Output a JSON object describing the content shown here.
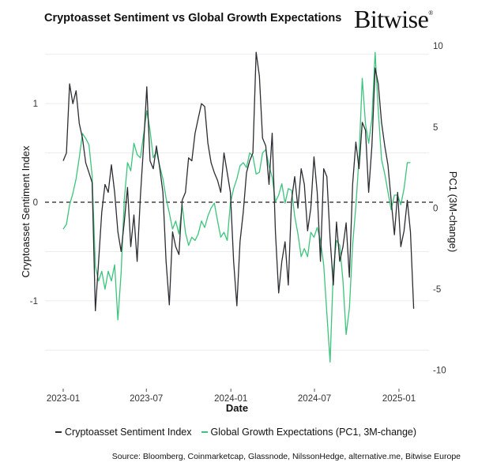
{
  "header": {
    "title": "Cryptoasset Sentiment vs Global Growth Expectations",
    "logo": "Bitwise",
    "logo_mark": "®"
  },
  "source": "Source: Bloomberg, Coinmarketcap, Glassnode, NilssonHedge, alternative.me, Bitwise Europe",
  "colors": {
    "sentiment": "#2b2d33",
    "growth": "#3cc47c",
    "grid": "#ececec"
  },
  "chart_data": {
    "type": "line",
    "title": "Cryptoasset Sentiment vs Global Growth Expectations",
    "xlabel": "Date",
    "ylabel": "Cryptoasset Sentiment Index",
    "ylabel_right": "PC1 (3M-change)",
    "x_ticks": [
      "2023-01",
      "2023-07",
      "2024-01",
      "2024-07",
      "2025-01"
    ],
    "y_ticks": [
      "1",
      "0",
      "-1"
    ],
    "y_ticks_right": [
      "10",
      "5",
      "0",
      "-5",
      "-10"
    ],
    "ylim": [
      -1.85,
      1.65
    ],
    "ylim_right": [
      -10.9,
      10.4
    ],
    "reference_line": {
      "axis": "left",
      "value": 0,
      "style": "dashed"
    },
    "grid": true,
    "legend": "bottom",
    "x": [
      "2023-01-01",
      "2023-01-08",
      "2023-01-15",
      "2023-01-22",
      "2023-01-29",
      "2023-02-05",
      "2023-02-12",
      "2023-02-19",
      "2023-02-26",
      "2023-03-05",
      "2023-03-12",
      "2023-03-19",
      "2023-03-26",
      "2023-04-02",
      "2023-04-09",
      "2023-04-16",
      "2023-04-23",
      "2023-04-30",
      "2023-05-07",
      "2023-05-14",
      "2023-05-21",
      "2023-05-28",
      "2023-06-04",
      "2023-06-11",
      "2023-06-18",
      "2023-06-25",
      "2023-07-02",
      "2023-07-09",
      "2023-07-16",
      "2023-07-23",
      "2023-07-30",
      "2023-08-06",
      "2023-08-13",
      "2023-08-20",
      "2023-08-27",
      "2023-09-03",
      "2023-09-10",
      "2023-09-17",
      "2023-09-24",
      "2023-10-01",
      "2023-10-08",
      "2023-10-15",
      "2023-10-22",
      "2023-10-29",
      "2023-11-05",
      "2023-11-12",
      "2023-11-19",
      "2023-11-26",
      "2023-12-03",
      "2023-12-10",
      "2023-12-17",
      "2023-12-24",
      "2023-12-31",
      "2024-01-07",
      "2024-01-14",
      "2024-01-21",
      "2024-01-28",
      "2024-02-04",
      "2024-02-11",
      "2024-02-18",
      "2024-02-25",
      "2024-03-03",
      "2024-03-10",
      "2024-03-17",
      "2024-03-24",
      "2024-03-31",
      "2024-04-07",
      "2024-04-14",
      "2024-04-21",
      "2024-04-28",
      "2024-05-05",
      "2024-05-12",
      "2024-05-19",
      "2024-05-26",
      "2024-06-02",
      "2024-06-09",
      "2024-06-16",
      "2024-06-23",
      "2024-06-30",
      "2024-07-07",
      "2024-07-14",
      "2024-07-21",
      "2024-07-28",
      "2024-08-04",
      "2024-08-11",
      "2024-08-18",
      "2024-08-25",
      "2024-09-01",
      "2024-09-08",
      "2024-09-15",
      "2024-09-22",
      "2024-09-29",
      "2024-10-06",
      "2024-10-13",
      "2024-10-20",
      "2024-10-27",
      "2024-11-03",
      "2024-11-10",
      "2024-11-17",
      "2024-11-24",
      "2024-12-01",
      "2024-12-08",
      "2024-12-15",
      "2024-12-22",
      "2024-12-29",
      "2025-01-05",
      "2025-01-12",
      "2025-01-19",
      "2025-01-26",
      "2025-02-02"
    ],
    "series": [
      {
        "name": "Cryptoasset Sentiment Index",
        "axis": "left",
        "values": [
          0.42,
          0.5,
          1.2,
          1.0,
          1.13,
          0.8,
          0.65,
          0.4,
          0.3,
          0.2,
          -1.1,
          -0.6,
          -0.1,
          0.18,
          0.1,
          0.38,
          0.1,
          -0.3,
          -0.5,
          -0.2,
          0.15,
          -0.45,
          -0.13,
          -0.6,
          0.06,
          0.57,
          1.17,
          0.42,
          0.34,
          0.57,
          0.35,
          0.1,
          -0.6,
          -1.04,
          -0.3,
          -0.45,
          -0.53,
          0.02,
          0.1,
          0.45,
          0.42,
          0.7,
          0.85,
          1.0,
          0.97,
          0.6,
          0.4,
          0.3,
          0.22,
          0.1,
          0.5,
          0.3,
          0.1,
          -0.6,
          -1.05,
          -0.4,
          -0.1,
          0.3,
          0.42,
          0.5,
          1.52,
          1.28,
          0.65,
          0.57,
          0.18,
          0.7,
          -0.3,
          -0.92,
          -0.6,
          -0.4,
          -0.84,
          0.02,
          0.26,
          -0.06,
          0.34,
          0.18,
          -0.29,
          -0.06,
          0.46,
          0.1,
          -0.6,
          0.34,
          0.26,
          -0.37,
          -0.84,
          -0.2,
          -0.6,
          -0.45,
          -0.21,
          -0.76,
          0.18,
          0.61,
          0.34,
          0.81,
          0.73,
          0.1,
          0.57,
          1.36,
          1.2,
          0.81,
          0.57,
          0.38,
          0.02,
          -0.33,
          0.1,
          -0.45,
          -0.29,
          0.02,
          -0.3,
          -1.08
        ]
      },
      {
        "name": "Global Growth Expectations (PC1, 3M-change)",
        "axis": "right",
        "values": [
          -1.3,
          -1.0,
          0.2,
          0.9,
          1.8,
          3.1,
          4.6,
          4.3,
          3.9,
          2.0,
          -3.6,
          -4.5,
          -3.9,
          -5.0,
          -3.9,
          -4.5,
          -3.5,
          -6.9,
          -4.0,
          0.5,
          2.8,
          2.3,
          4.0,
          3.3,
          3.1,
          4.5,
          6.0,
          4.8,
          3.1,
          3.5,
          2.6,
          1.8,
          0.6,
          -0.3,
          -1.3,
          -0.8,
          -1.6,
          0.2,
          -1.5,
          -2.3,
          -1.8,
          -2.0,
          -1.6,
          -0.8,
          -1.2,
          -0.5,
          0.0,
          0.3,
          -0.8,
          -1.8,
          -1.5,
          -2.0,
          0.3,
          1.2,
          1.8,
          2.6,
          2.8,
          2.5,
          3.4,
          3.2,
          2.1,
          2.2,
          3.4,
          3.6,
          2.6,
          1.9,
          0.4,
          0.8,
          1.5,
          0.3,
          1.2,
          1.1,
          -0.5,
          -1.6,
          -3.0,
          -2.5,
          -3.0,
          -1.5,
          -1.8,
          -1.2,
          -2.0,
          -3.5,
          -6.5,
          -9.5,
          -3.8,
          -2.0,
          -2.3,
          -4.5,
          -7.8,
          -6.2,
          -2.3,
          0.1,
          3.1,
          8.0,
          5.2,
          4.0,
          5.5,
          9.6,
          6.0,
          3.0,
          2.1,
          1.0,
          -0.1,
          0.8,
          0.8,
          0.2,
          1.2,
          2.8,
          2.8,
          null
        ]
      }
    ]
  }
}
